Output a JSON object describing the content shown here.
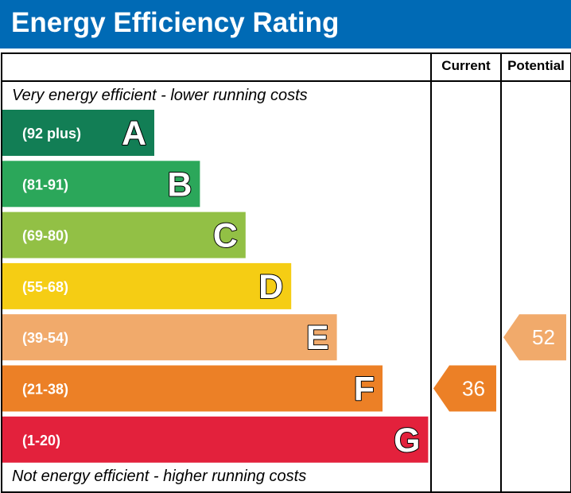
{
  "header": {
    "title": "Energy Efficiency Rating"
  },
  "columns": {
    "current": "Current",
    "potential": "Potential"
  },
  "notes": {
    "top": "Very energy efficient - lower running costs",
    "bottom": "Not energy efficient - higher running costs"
  },
  "chart_data": {
    "type": "bar",
    "title": "Energy Efficiency Rating",
    "bands": [
      {
        "letter": "A",
        "range": "(92 plus)",
        "color": "#127e55"
      },
      {
        "letter": "B",
        "range": "(81-91)",
        "color": "#2ba75a"
      },
      {
        "letter": "C",
        "range": "(69-80)",
        "color": "#92c045"
      },
      {
        "letter": "D",
        "range": "(55-68)",
        "color": "#f5cd14"
      },
      {
        "letter": "E",
        "range": "(39-54)",
        "color": "#f1aa6b"
      },
      {
        "letter": "F",
        "range": "(21-38)",
        "color": "#ec8026"
      },
      {
        "letter": "G",
        "range": "(1-20)",
        "color": "#e3213c"
      }
    ],
    "current": {
      "value": 36,
      "label": "36",
      "band": "F",
      "color": "#ec8026"
    },
    "potential": {
      "value": 52,
      "label": "52",
      "band": "E",
      "color": "#f1aa6b"
    }
  }
}
